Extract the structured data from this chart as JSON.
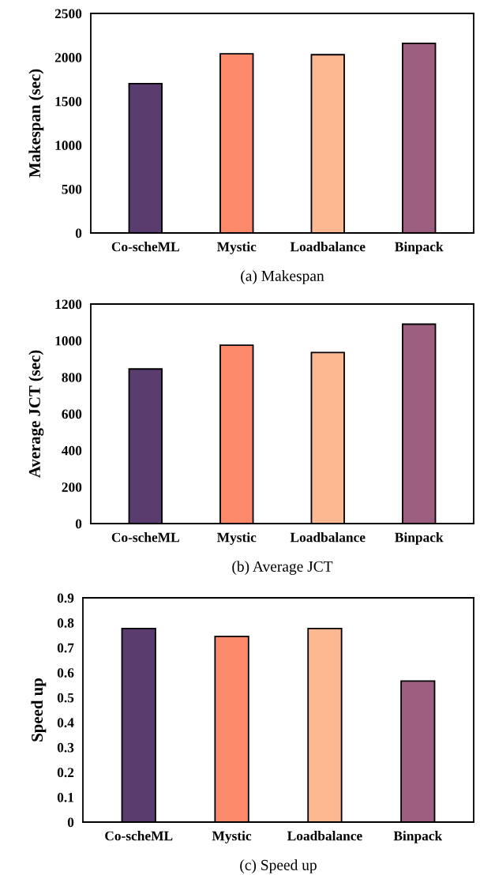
{
  "chart_data": [
    {
      "type": "bar",
      "categories": [
        "Co-scheML",
        "Mystic",
        "Loadbalance",
        "Binpack"
      ],
      "values": [
        1700,
        2040,
        2030,
        2160
      ],
      "colors": [
        "#5a3d6e",
        "#fc8a6a",
        "#fdb891",
        "#9e5e80"
      ],
      "ylabel": "Makespan (sec)",
      "ylim": [
        0,
        2500
      ],
      "yticks": [
        0,
        500,
        1000,
        1500,
        2000,
        2500
      ],
      "grid": false,
      "annotations": [
        "(a) Makespan"
      ]
    },
    {
      "type": "bar",
      "categories": [
        "Co-scheML",
        "Mystic",
        "Loadbalance",
        "Binpack"
      ],
      "values": [
        845,
        975,
        935,
        1090
      ],
      "colors": [
        "#5a3d6e",
        "#fc8a6a",
        "#fdb891",
        "#9e5e80"
      ],
      "ylabel": "Average JCT (sec)",
      "ylim": [
        0,
        1200
      ],
      "yticks": [
        0,
        200,
        400,
        600,
        800,
        1000,
        1200
      ],
      "grid": false,
      "annotations": [
        "(b) Average JCT"
      ]
    },
    {
      "type": "bar",
      "categories": [
        "Co-scheML",
        "Mystic",
        "Loadbalance",
        "Binpack"
      ],
      "values": [
        0.777,
        0.745,
        0.777,
        0.566
      ],
      "colors": [
        "#5a3d6e",
        "#fc8a6a",
        "#fdb891",
        "#9e5e80"
      ],
      "ylabel": "Speed up",
      "ylim": [
        0,
        0.9
      ],
      "yticks": [
        0,
        0.1,
        0.2,
        0.3,
        0.4,
        0.5,
        0.6,
        0.7,
        0.8,
        0.9
      ],
      "grid": false,
      "annotations": [
        "(c) Speed up"
      ]
    }
  ]
}
